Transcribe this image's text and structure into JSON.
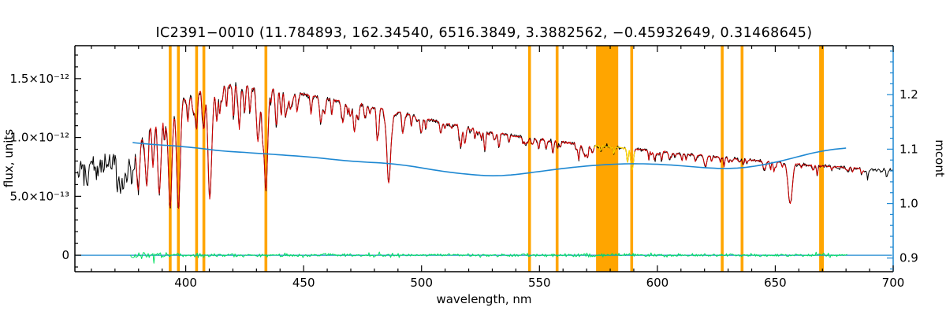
{
  "chart_data": {
    "type": "line",
    "title": "IC2391−0010  (11.784893, 162.34540, 6516.3849, 3.3882562, −0.45932649, 0.31468645)",
    "xlabel": "wavelength, nm",
    "ylabel_left": "flux, units",
    "ylabel_right": "mcont",
    "xlim": [
      353,
      700
    ],
    "ylim_left": [
      -1.4e-13,
      1.78e-12
    ],
    "ylim_right": [
      0.875,
      1.29
    ],
    "x_ticks": [
      {
        "v": 400,
        "label": "400"
      },
      {
        "v": 450,
        "label": "450"
      },
      {
        "v": 500,
        "label": "500"
      },
      {
        "v": 550,
        "label": "550"
      },
      {
        "v": 600,
        "label": "600"
      },
      {
        "v": 650,
        "label": "650"
      },
      {
        "v": 700,
        "label": "700"
      }
    ],
    "x_minor_step": 10,
    "left_ticks": [
      {
        "v": 0,
        "label": "0"
      },
      {
        "v": 5e-13,
        "label": "5.0×10⁻¹³"
      },
      {
        "v": 1e-12,
        "label": "1.0×10⁻¹²"
      },
      {
        "v": 1.5e-12,
        "label": "1.5×10⁻¹²"
      }
    ],
    "left_minor_step": 1e-13,
    "right_ticks": [
      {
        "v": 0.9,
        "label": "0.9"
      },
      {
        "v": 1.0,
        "label": "1.0"
      },
      {
        "v": 1.1,
        "label": "1.1"
      },
      {
        "v": 1.2,
        "label": "1.2"
      }
    ],
    "right_minor_step": 0.02,
    "colors": {
      "frame": "#000000",
      "observed": "#000000",
      "model": "#d40000",
      "mcont": "#1e88d2",
      "right_axis": "#1e88d2",
      "residual": "#00e060",
      "masked": "#ffa500",
      "highlight": "#ffdf00",
      "zero_line": "#1e88d2"
    },
    "masked_regions": [
      [
        392.8,
        394.0
      ],
      [
        396.3,
        397.5
      ],
      [
        404.0,
        405.2
      ],
      [
        407.1,
        408.3
      ],
      [
        433.4,
        434.6
      ],
      [
        545.2,
        546.4
      ],
      [
        556.9,
        558.1
      ],
      [
        574.0,
        583.4
      ],
      [
        588.5,
        589.7
      ],
      [
        626.9,
        628.1
      ],
      [
        635.3,
        636.5
      ],
      [
        668.6,
        670.6
      ]
    ],
    "highlight_range": [
      573.0,
      590.5
    ],
    "absorption_lines": [
      [
        371.2,
        0.3,
        0.45
      ],
      [
        372.2,
        0.3,
        0.45
      ],
      [
        373.4,
        0.32,
        0.5
      ],
      [
        375.0,
        0.34,
        0.5
      ],
      [
        377.1,
        0.36,
        0.55
      ],
      [
        379.8,
        0.4,
        0.6
      ],
      [
        383.5,
        0.45,
        0.65
      ],
      [
        386.0,
        0.25,
        0.4
      ],
      [
        388.9,
        0.5,
        0.7
      ],
      [
        391.0,
        0.2,
        0.35
      ],
      [
        393.4,
        0.68,
        0.75
      ],
      [
        396.9,
        0.7,
        0.75
      ],
      [
        400.9,
        0.15,
        0.35
      ],
      [
        404.6,
        0.22,
        0.4
      ],
      [
        407.7,
        0.2,
        0.4
      ],
      [
        410.2,
        0.66,
        0.75
      ],
      [
        413.1,
        0.15,
        0.35
      ],
      [
        414.4,
        0.12,
        0.3
      ],
      [
        417.3,
        0.14,
        0.3
      ],
      [
        420.2,
        0.12,
        0.3
      ],
      [
        422.7,
        0.24,
        0.4
      ],
      [
        425.0,
        0.15,
        0.35
      ],
      [
        427.2,
        0.16,
        0.35
      ],
      [
        430.8,
        0.28,
        0.7
      ],
      [
        432.6,
        0.18,
        0.4
      ],
      [
        434.0,
        0.6,
        0.75
      ],
      [
        438.4,
        0.2,
        0.45
      ],
      [
        440.5,
        0.15,
        0.35
      ],
      [
        444.3,
        0.1,
        0.3
      ],
      [
        447.2,
        0.12,
        0.35
      ],
      [
        453.1,
        0.1,
        0.3
      ],
      [
        457.2,
        0.08,
        0.3
      ],
      [
        462.0,
        0.08,
        0.3
      ],
      [
        466.8,
        0.1,
        0.35
      ],
      [
        470.0,
        0.07,
        0.3
      ],
      [
        476.3,
        0.08,
        0.3
      ],
      [
        481.5,
        0.08,
        0.3
      ],
      [
        486.1,
        0.5,
        0.8
      ],
      [
        492.1,
        0.1,
        0.35
      ],
      [
        495.7,
        0.08,
        0.3
      ],
      [
        501.8,
        0.08,
        0.3
      ],
      [
        508.0,
        0.07,
        0.3
      ],
      [
        516.7,
        0.13,
        0.45
      ],
      [
        518.4,
        0.13,
        0.45
      ],
      [
        522.7,
        0.08,
        0.3
      ],
      [
        526.9,
        0.1,
        0.35
      ],
      [
        532.8,
        0.08,
        0.35
      ],
      [
        537.1,
        0.06,
        0.3
      ],
      [
        543.0,
        0.06,
        0.3
      ],
      [
        552.8,
        0.08,
        0.35
      ],
      [
        558.8,
        0.05,
        0.3
      ],
      [
        565.5,
        0.05,
        0.3
      ],
      [
        570.5,
        0.05,
        0.3
      ],
      [
        576.0,
        0.05,
        0.3
      ],
      [
        581.5,
        0.06,
        0.3
      ],
      [
        589.0,
        0.14,
        0.45
      ],
      [
        589.6,
        0.12,
        0.4
      ],
      [
        597.5,
        0.05,
        0.3
      ],
      [
        605.0,
        0.05,
        0.3
      ],
      [
        612.2,
        0.06,
        0.3
      ],
      [
        616.2,
        0.07,
        0.35
      ],
      [
        623.0,
        0.05,
        0.3
      ],
      [
        630.2,
        0.05,
        0.3
      ],
      [
        638.0,
        0.04,
        0.3
      ],
      [
        644.9,
        0.05,
        0.3
      ],
      [
        649.4,
        0.06,
        0.3
      ],
      [
        653.0,
        0.05,
        0.3
      ],
      [
        656.3,
        0.44,
        0.85
      ],
      [
        661.0,
        0.04,
        0.3
      ],
      [
        667.8,
        0.05,
        0.3
      ],
      [
        674.0,
        0.04,
        0.3
      ],
      [
        681.0,
        0.04,
        0.3
      ],
      [
        688.0,
        0.04,
        0.3
      ],
      [
        695.0,
        0.04,
        0.3
      ]
    ],
    "random_dips": {
      "seed": 77,
      "count": 160,
      "range": [
        378,
        700
      ],
      "blue_bias": 1.7,
      "depth_min": 0.02,
      "depth_max": 0.14,
      "width_min": 0.2,
      "width_max": 0.5
    },
    "series": {
      "observed": {
        "label": "observed spectrum",
        "x_range": [
          354.2,
          700
        ],
        "x_step": 0.33,
        "seed": 101,
        "continuum_scale": 1e-13,
        "continuum": [
          [
            354,
            7.0
          ],
          [
            362,
            7.4
          ],
          [
            368,
            7.8
          ],
          [
            374,
            8.6
          ],
          [
            380,
            10.0
          ],
          [
            386,
            11.6
          ],
          [
            392,
            12.6
          ],
          [
            398,
            13.3
          ],
          [
            404,
            13.8
          ],
          [
            410,
            14.1
          ],
          [
            416,
            14.4
          ],
          [
            422,
            14.5
          ],
          [
            428,
            14.4
          ],
          [
            434,
            14.2
          ],
          [
            440,
            14.0
          ],
          [
            446,
            13.8
          ],
          [
            452,
            13.6
          ],
          [
            460,
            13.3
          ],
          [
            468,
            13.0
          ],
          [
            476,
            12.7
          ],
          [
            484,
            12.4
          ],
          [
            492,
            12.1
          ],
          [
            500,
            11.7
          ],
          [
            508,
            11.3
          ],
          [
            516,
            11.0
          ],
          [
            524,
            10.7
          ],
          [
            532,
            10.4
          ],
          [
            540,
            10.1
          ],
          [
            548,
            9.9
          ],
          [
            556,
            9.7
          ],
          [
            564,
            9.5
          ],
          [
            572,
            9.35
          ],
          [
            580,
            9.2
          ],
          [
            588,
            9.05
          ],
          [
            596,
            8.9
          ],
          [
            604,
            8.75
          ],
          [
            612,
            8.6
          ],
          [
            620,
            8.45
          ],
          [
            628,
            8.3
          ],
          [
            636,
            8.15
          ],
          [
            644,
            8.0
          ],
          [
            652,
            7.9
          ],
          [
            660,
            7.75
          ],
          [
            668,
            7.6
          ],
          [
            676,
            7.5
          ],
          [
            684,
            7.4
          ],
          [
            692,
            7.3
          ],
          [
            700,
            7.2
          ]
        ],
        "noise_profile": [
          [
            354,
            6e-14
          ],
          [
            370,
            5.5e-14
          ],
          [
            377,
            3.2e-14
          ],
          [
            385,
            2e-14
          ],
          [
            400,
            1.5e-14
          ],
          [
            450,
            1.1e-14
          ],
          [
            500,
            9e-15
          ],
          [
            600,
            8e-15
          ],
          [
            700,
            8e-15
          ]
        ]
      },
      "model": {
        "label": "model fit",
        "x_range": [
          378.5,
          688
        ],
        "x_step": 0.33,
        "seed": 202,
        "noise_profile": [
          [
            378,
            9e-15
          ],
          [
            400,
            6e-15
          ],
          [
            500,
            4.5e-15
          ],
          [
            700,
            4e-15
          ]
        ]
      },
      "mcont": {
        "label": "continuum ratio",
        "points": [
          [
            377.5,
            1.112
          ],
          [
            385,
            1.109
          ],
          [
            395,
            1.106
          ],
          [
            405,
            1.102
          ],
          [
            415,
            1.097
          ],
          [
            425,
            1.094
          ],
          [
            435,
            1.091
          ],
          [
            445,
            1.088
          ],
          [
            455,
            1.0845
          ],
          [
            465,
            1.08
          ],
          [
            475,
            1.0765
          ],
          [
            485,
            1.074
          ],
          [
            495,
            1.069
          ],
          [
            505,
            1.062
          ],
          [
            515,
            1.056
          ],
          [
            525,
            1.052
          ],
          [
            532,
            1.0512
          ],
          [
            540,
            1.0535
          ],
          [
            550,
            1.059
          ],
          [
            560,
            1.0645
          ],
          [
            570,
            1.069
          ],
          [
            580,
            1.072
          ],
          [
            590,
            1.0732
          ],
          [
            600,
            1.0722
          ],
          [
            610,
            1.0695
          ],
          [
            620,
            1.066
          ],
          [
            628,
            1.0645
          ],
          [
            636,
            1.066
          ],
          [
            645,
            1.0715
          ],
          [
            655,
            1.081
          ],
          [
            665,
            1.092
          ],
          [
            673,
            1.0985
          ],
          [
            680,
            1.102
          ]
        ]
      },
      "residual": {
        "label": "fit residual",
        "x_range": [
          376.5,
          680.5
        ],
        "x_step": 0.4,
        "seed": 303,
        "spike_prob": 0.012,
        "spike_scale": 3,
        "noise_profile": [
          [
            376,
            2e-14
          ],
          [
            385,
            1.6e-14
          ],
          [
            395,
            1e-14
          ],
          [
            420,
            8e-15
          ],
          [
            500,
            7e-15
          ],
          [
            600,
            6.5e-15
          ],
          [
            680,
            7e-15
          ]
        ]
      },
      "zero_line": {
        "label": "zero level",
        "x_range": [
          353.4,
          699.5
        ],
        "value": 0
      }
    }
  }
}
